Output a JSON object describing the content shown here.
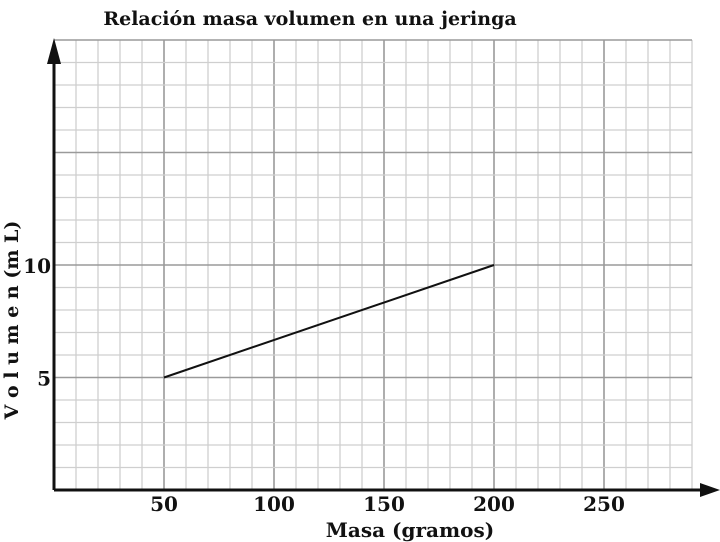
{
  "chart_data": {
    "type": "line",
    "title": "Relación masa volumen en una jeringa",
    "xlabel": "Masa (gramos)",
    "ylabel": "V o l u m e n   (m L)",
    "xlim": [
      0,
      290
    ],
    "ylim": [
      0,
      20
    ],
    "x_ticks": [
      50,
      100,
      150,
      200,
      250
    ],
    "y_ticks": [
      5,
      10
    ],
    "grid": true,
    "series": [
      {
        "x": [
          50,
          200
        ],
        "y": [
          5,
          10
        ]
      }
    ],
    "colors": {
      "line": "#111111",
      "minor_grid": "#cfcfcf",
      "major_grid": "#9a9a9a",
      "axis": "#111111"
    }
  }
}
